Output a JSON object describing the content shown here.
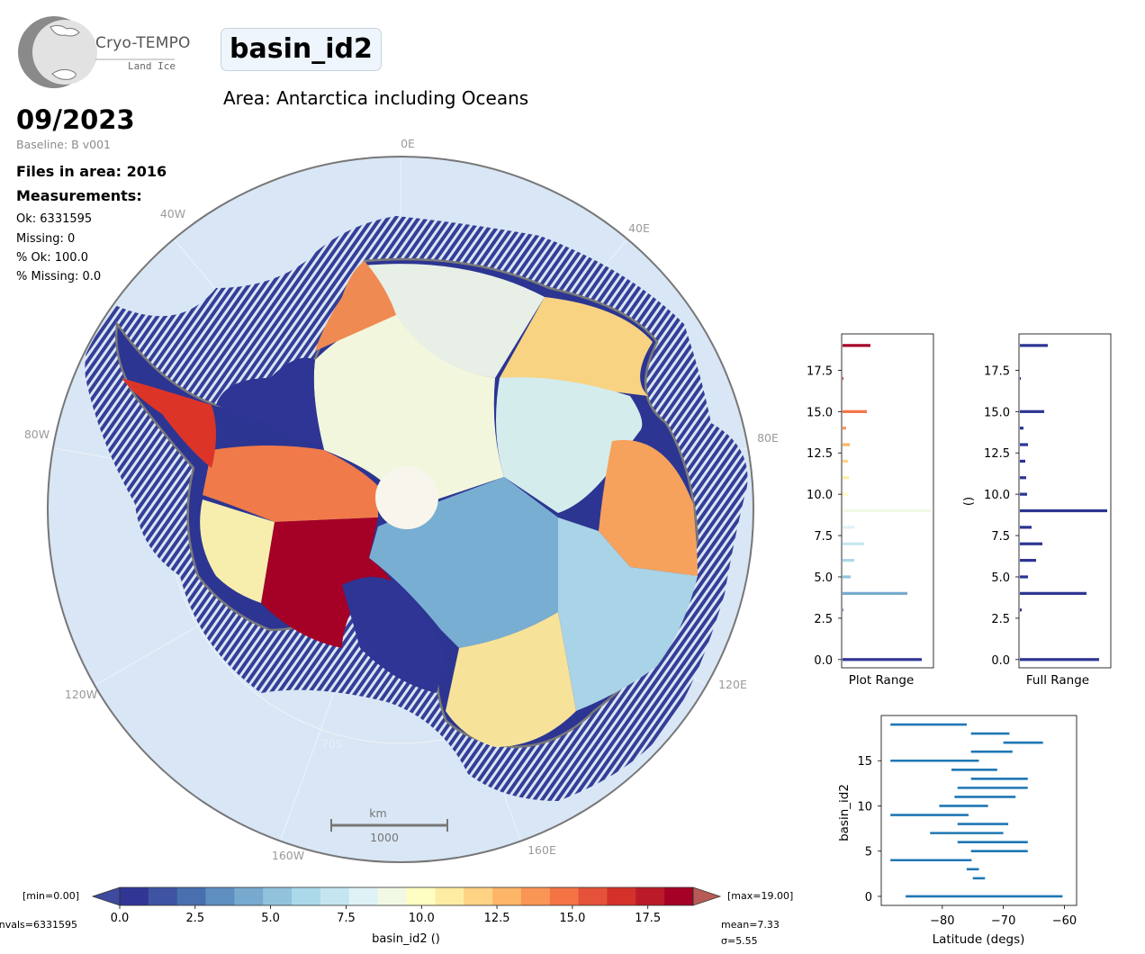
{
  "logo": {
    "name": "Cryo-TEMPO",
    "subtitle": "Land Ice"
  },
  "header": {
    "title": "basin_id2",
    "area": "Area: Antarctica including Oceans",
    "date": "09/2023",
    "baseline": "Baseline: B v001"
  },
  "stats": {
    "files": "Files in area: 2016",
    "measurements_label": "Measurements:",
    "ok": "Ok: 6331595",
    "missing": "Missing: 0",
    "pct_ok": "% Ok: 100.0",
    "pct_missing": "% Missing: 0.0"
  },
  "map": {
    "longitude_labels": [
      "0E",
      "40E",
      "80E",
      "120E",
      "160E",
      "160W",
      "120W",
      "80W",
      "40W"
    ],
    "latitude_label": "70S",
    "scalebar_unit": "km",
    "scalebar_value": "1000",
    "colors": {
      "ocean": "#d9e6f5",
      "track": "#2c3592",
      "coast": "#7a7a7a"
    }
  },
  "colorbar": {
    "min_label": "[min=0.00]",
    "max_label": "[max=19.00]",
    "nvals_label": "nvals=6331595",
    "mean_label": "mean=7.33",
    "std_label": "σ=5.55",
    "xlabel": "basin_id2 ()",
    "tick_labels": [
      "0.0",
      "2.5",
      "5.0",
      "7.5",
      "10.0",
      "12.5",
      "15.0",
      "17.5"
    ],
    "ticks": [
      0,
      2.5,
      5,
      7.5,
      10,
      12.5,
      15,
      17.5
    ],
    "vmin": 0,
    "vmax": 19,
    "colors": [
      "#313695",
      "#3e53a1",
      "#4a6fae",
      "#5f8fc0",
      "#78aacf",
      "#92c3dd",
      "#abd9e9",
      "#c5e6f0",
      "#dff2f6",
      "#f1f9e5",
      "#fffec2",
      "#feeca3",
      "#fed384",
      "#fdb668",
      "#f99656",
      "#f47446",
      "#e4523a",
      "#d3312a",
      "#bb1a29",
      "#a50026"
    ]
  },
  "chart_data": [
    {
      "type": "bar",
      "orientation": "horizontal",
      "xlabel": "Plot Range",
      "ylabel": "",
      "ylim": [
        -0.5,
        19.7
      ],
      "yticks": [
        "0.0",
        "2.5",
        "5.0",
        "7.5",
        "10.0",
        "12.5",
        "15.0",
        "17.5"
      ],
      "categories": [
        0,
        1,
        2,
        3,
        4,
        5,
        6,
        7,
        8,
        9,
        10,
        11,
        12,
        13,
        14,
        15,
        16,
        17,
        18,
        19
      ],
      "values": [
        0.88,
        0.0,
        0.0,
        0.01,
        0.72,
        0.09,
        0.13,
        0.24,
        0.13,
        0.98,
        0.06,
        0.07,
        0.06,
        0.08,
        0.04,
        0.27,
        0.0,
        0.01,
        0.0,
        0.31
      ]
    },
    {
      "type": "bar",
      "orientation": "horizontal",
      "xlabel": "Full Range",
      "ylabel": "()",
      "ylim": [
        -0.5,
        19.7
      ],
      "yticks": [
        "0.0",
        "2.5",
        "5.0",
        "7.5",
        "10.0",
        "12.5",
        "15.0",
        "17.5"
      ],
      "categories": [
        0,
        1,
        2,
        3,
        4,
        5,
        6,
        7,
        8,
        9,
        10,
        11,
        12,
        13,
        14,
        15,
        16,
        17,
        18,
        19
      ],
      "values": [
        0.88,
        0.0,
        0.0,
        0.02,
        0.74,
        0.09,
        0.18,
        0.25,
        0.13,
        0.97,
        0.08,
        0.07,
        0.06,
        0.09,
        0.04,
        0.27,
        0.0,
        0.01,
        0.0,
        0.31
      ]
    },
    {
      "type": "bar",
      "orientation": "floating-horizontal",
      "xlabel": "Latitude (degs)",
      "ylabel": "basin_id2",
      "xlim": [
        -90,
        -58
      ],
      "ylim": [
        -1,
        20
      ],
      "xticks": [
        "−80",
        "−70",
        "−60"
      ],
      "yticks": [
        "0",
        "5",
        "10",
        "15"
      ],
      "color": "#1f77b4",
      "ranges": [
        {
          "id": 0,
          "min": -86,
          "max": -60.3
        },
        {
          "id": 2,
          "min": -75,
          "max": -73
        },
        {
          "id": 3,
          "min": -76,
          "max": -74
        },
        {
          "id": 4,
          "min": -88.5,
          "max": -75.2
        },
        {
          "id": 5,
          "min": -75.3,
          "max": -66
        },
        {
          "id": 6,
          "min": -77.5,
          "max": -66
        },
        {
          "id": 7,
          "min": -82,
          "max": -70
        },
        {
          "id": 8,
          "min": -77.5,
          "max": -69.2
        },
        {
          "id": 9,
          "min": -88.5,
          "max": -75.7
        },
        {
          "id": 10,
          "min": -80.5,
          "max": -72.5
        },
        {
          "id": 11,
          "min": -78,
          "max": -68
        },
        {
          "id": 12,
          "min": -77.5,
          "max": -66
        },
        {
          "id": 13,
          "min": -75.3,
          "max": -66
        },
        {
          "id": 14,
          "min": -78.5,
          "max": -71
        },
        {
          "id": 15,
          "min": -88.5,
          "max": -74
        },
        {
          "id": 16,
          "min": -75.3,
          "max": -68.5
        },
        {
          "id": 17,
          "min": -70,
          "max": -63.5
        },
        {
          "id": 18,
          "min": -75.3,
          "max": -69
        },
        {
          "id": 19,
          "min": -88.5,
          "max": -76
        }
      ]
    }
  ]
}
